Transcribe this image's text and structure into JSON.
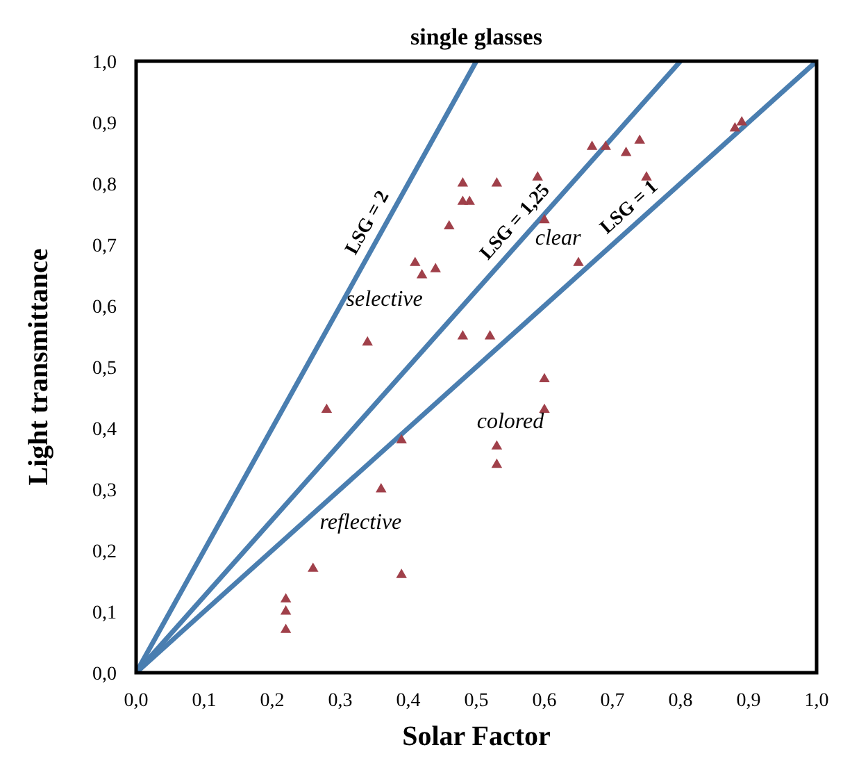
{
  "chart_data": {
    "type": "scatter",
    "title": "single glasses",
    "xlabel": "Solar Factor",
    "ylabel": "Light transmittance",
    "xlim": [
      0,
      1
    ],
    "ylim": [
      0,
      1
    ],
    "xticks": [
      {
        "value": 0,
        "label": "0,0"
      },
      {
        "value": 0.1,
        "label": "0,1"
      },
      {
        "value": 0.2,
        "label": "0,2"
      },
      {
        "value": 0.3,
        "label": "0,3"
      },
      {
        "value": 0.4,
        "label": "0,4"
      },
      {
        "value": 0.5,
        "label": "0,5"
      },
      {
        "value": 0.6,
        "label": "0,6"
      },
      {
        "value": 0.7,
        "label": "0,7"
      },
      {
        "value": 0.8,
        "label": "0,8"
      },
      {
        "value": 0.9,
        "label": "0,9"
      },
      {
        "value": 1,
        "label": "1,0"
      }
    ],
    "yticks": [
      {
        "value": 0,
        "label": "0,0"
      },
      {
        "value": 0.1,
        "label": "0,1"
      },
      {
        "value": 0.2,
        "label": "0,2"
      },
      {
        "value": 0.3,
        "label": "0,3"
      },
      {
        "value": 0.4,
        "label": "0,4"
      },
      {
        "value": 0.5,
        "label": "0,5"
      },
      {
        "value": 0.6,
        "label": "0,6"
      },
      {
        "value": 0.7,
        "label": "0,7"
      },
      {
        "value": 0.8,
        "label": "0,8"
      },
      {
        "value": 0.9,
        "label": "0,9"
      },
      {
        "value": 1,
        "label": "1,0"
      }
    ],
    "grid": false,
    "legend": false,
    "series": [
      {
        "type": "line",
        "name": "LSG = 2",
        "color": "#4a7eb0",
        "x": [
          0,
          0.5
        ],
        "values": [
          0,
          1
        ]
      },
      {
        "type": "line",
        "name": "LSG = 1,25",
        "color": "#4a7eb0",
        "x": [
          0,
          0.8
        ],
        "values": [
          0,
          1
        ]
      },
      {
        "type": "line",
        "name": "LSG = 1",
        "color": "#4a7eb0",
        "x": [
          0,
          1
        ],
        "values": [
          0,
          1
        ]
      },
      {
        "marker": "triangle",
        "color": "#a0404a",
        "x": [
          0.22,
          0.22,
          0.22,
          0.26,
          0.39,
          0.28,
          0.34,
          0.36,
          0.39,
          0.41,
          0.42,
          0.44,
          0.46,
          0.48,
          0.48,
          0.49,
          0.48,
          0.52,
          0.53,
          0.59,
          0.6,
          0.53,
          0.53,
          0.6,
          0.6,
          0.65,
          0.67,
          0.69,
          0.72,
          0.74,
          0.75,
          0.88,
          0.89
        ],
        "values": [
          0.12,
          0.1,
          0.07,
          0.17,
          0.16,
          0.43,
          0.54,
          0.3,
          0.38,
          0.67,
          0.65,
          0.66,
          0.73,
          0.8,
          0.77,
          0.77,
          0.55,
          0.55,
          0.8,
          0.81,
          0.74,
          0.37,
          0.34,
          0.48,
          0.43,
          0.67,
          0.86,
          0.86,
          0.85,
          0.87,
          0.81,
          0.89,
          0.9
        ]
      }
    ],
    "annotations": [
      "selective",
      "clear",
      "colored",
      "reflective"
    ]
  }
}
